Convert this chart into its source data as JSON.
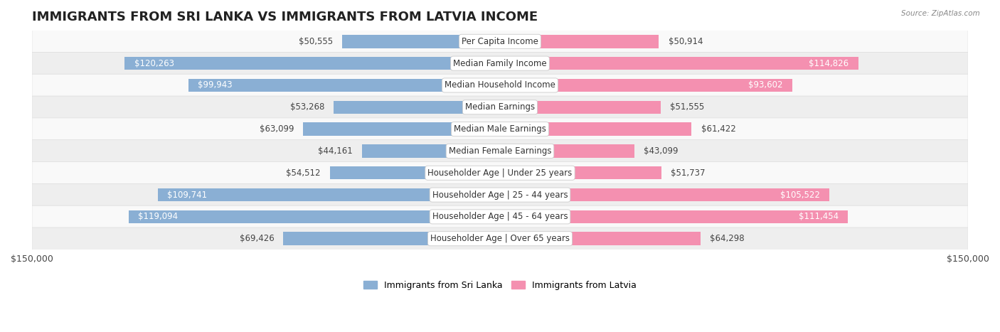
{
  "title": "IMMIGRANTS FROM SRI LANKA VS IMMIGRANTS FROM LATVIA INCOME",
  "source": "Source: ZipAtlas.com",
  "categories": [
    "Per Capita Income",
    "Median Family Income",
    "Median Household Income",
    "Median Earnings",
    "Median Male Earnings",
    "Median Female Earnings",
    "Householder Age | Under 25 years",
    "Householder Age | 25 - 44 years",
    "Householder Age | 45 - 64 years",
    "Householder Age | Over 65 years"
  ],
  "sri_lanka_values": [
    50555,
    120263,
    99943,
    53268,
    63099,
    44161,
    54512,
    109741,
    119094,
    69426
  ],
  "latvia_values": [
    50914,
    114826,
    93602,
    51555,
    61422,
    43099,
    51737,
    105522,
    111454,
    64298
  ],
  "sri_lanka_color": "#8aafd4",
  "latvia_color": "#f490b0",
  "row_bg_color_light": "#f9f9f9",
  "row_bg_color_dark": "#eeeeee",
  "row_border_color": "#dddddd",
  "xlim": 150000,
  "xlabel_left": "$150,000",
  "xlabel_right": "$150,000",
  "legend_sri_lanka": "Immigrants from Sri Lanka",
  "legend_latvia": "Immigrants from Latvia",
  "title_fontsize": 13,
  "label_fontsize": 8.5,
  "value_fontsize": 8.5,
  "bar_height": 0.6,
  "large_val_threshold": 80000
}
